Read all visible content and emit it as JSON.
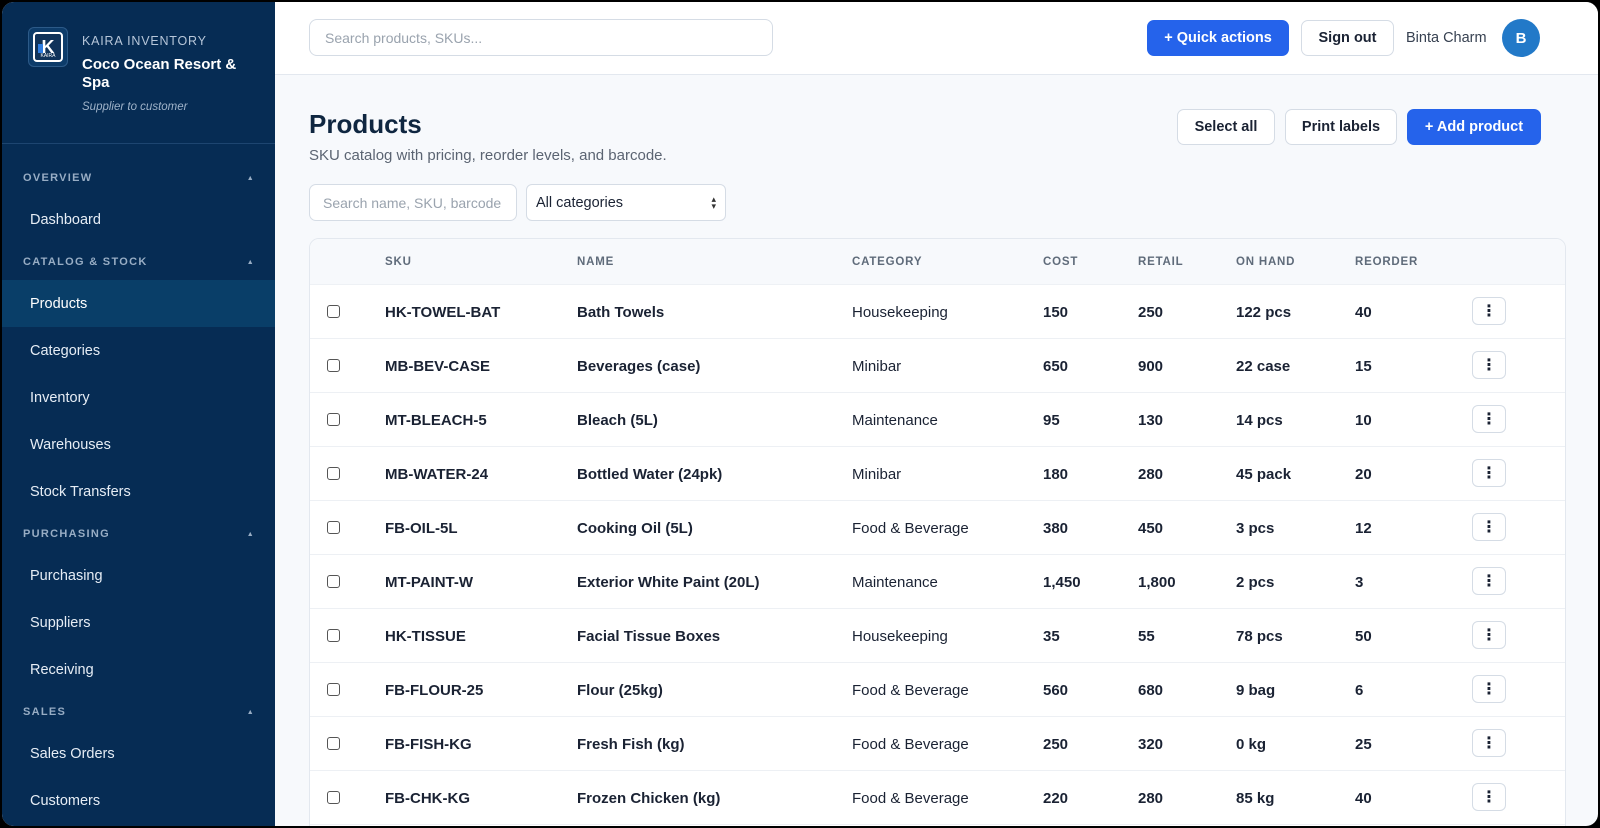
{
  "brand": {
    "subtitle": "KAIRA INVENTORY",
    "name": "Coco Ocean Resort & Spa",
    "tagline": "Supplier to customer",
    "logo_text": "KAIRA"
  },
  "nav": {
    "sections": [
      {
        "title": "OVERVIEW",
        "items": [
          {
            "label": "Dashboard",
            "active": false
          }
        ]
      },
      {
        "title": "CATALOG & STOCK",
        "items": [
          {
            "label": "Products",
            "active": true
          },
          {
            "label": "Categories",
            "active": false
          },
          {
            "label": "Inventory",
            "active": false
          },
          {
            "label": "Warehouses",
            "active": false
          },
          {
            "label": "Stock Transfers",
            "active": false
          }
        ]
      },
      {
        "title": "PURCHASING",
        "items": [
          {
            "label": "Purchasing",
            "active": false
          },
          {
            "label": "Suppliers",
            "active": false
          },
          {
            "label": "Receiving",
            "active": false
          }
        ]
      },
      {
        "title": "SALES",
        "items": [
          {
            "label": "Sales Orders",
            "active": false
          },
          {
            "label": "Customers",
            "active": false
          }
        ]
      }
    ]
  },
  "topbar": {
    "search_placeholder": "Search products, SKUs...",
    "quick_actions": "+ Quick actions",
    "sign_out": "Sign out",
    "user_name": "Binta Charm",
    "avatar_initial": "B"
  },
  "page": {
    "title": "Products",
    "subtitle": "SKU catalog with pricing, reorder levels, and barcode.",
    "select_all": "Select all",
    "print_labels": "Print labels",
    "add_product": "+ Add product",
    "filter_placeholder": "Search name, SKU, barcode",
    "category_filter": "All categories"
  },
  "table": {
    "headers": [
      "SKU",
      "NAME",
      "CATEGORY",
      "COST",
      "RETAIL",
      "ON HAND",
      "REORDER"
    ],
    "rows": [
      {
        "sku": "HK-TOWEL-BAT",
        "name": "Bath Towels",
        "category": "Housekeeping",
        "cost": "150",
        "retail": "250",
        "on_hand": "122 pcs",
        "reorder": "40"
      },
      {
        "sku": "MB-BEV-CASE",
        "name": "Beverages (case)",
        "category": "Minibar",
        "cost": "650",
        "retail": "900",
        "on_hand": "22 case",
        "reorder": "15"
      },
      {
        "sku": "MT-BLEACH-5",
        "name": "Bleach (5L)",
        "category": "Maintenance",
        "cost": "95",
        "retail": "130",
        "on_hand": "14 pcs",
        "reorder": "10"
      },
      {
        "sku": "MB-WATER-24",
        "name": "Bottled Water (24pk)",
        "category": "Minibar",
        "cost": "180",
        "retail": "280",
        "on_hand": "45 pack",
        "reorder": "20"
      },
      {
        "sku": "FB-OIL-5L",
        "name": "Cooking Oil (5L)",
        "category": "Food & Beverage",
        "cost": "380",
        "retail": "450",
        "on_hand": "3 pcs",
        "reorder": "12"
      },
      {
        "sku": "MT-PAINT-W",
        "name": "Exterior White Paint (20L)",
        "category": "Maintenance",
        "cost": "1,450",
        "retail": "1,800",
        "on_hand": "2 pcs",
        "reorder": "3"
      },
      {
        "sku": "HK-TISSUE",
        "name": "Facial Tissue Boxes",
        "category": "Housekeeping",
        "cost": "35",
        "retail": "55",
        "on_hand": "78 pcs",
        "reorder": "50"
      },
      {
        "sku": "FB-FLOUR-25",
        "name": "Flour (25kg)",
        "category": "Food & Beverage",
        "cost": "560",
        "retail": "680",
        "on_hand": "9 bag",
        "reorder": "6"
      },
      {
        "sku": "FB-FISH-KG",
        "name": "Fresh Fish (kg)",
        "category": "Food & Beverage",
        "cost": "250",
        "retail": "320",
        "on_hand": "0 kg",
        "reorder": "25"
      },
      {
        "sku": "FB-CHK-KG",
        "name": "Frozen Chicken (kg)",
        "category": "Food & Beverage",
        "cost": "220",
        "retail": "280",
        "on_hand": "85 kg",
        "reorder": "40"
      }
    ]
  }
}
